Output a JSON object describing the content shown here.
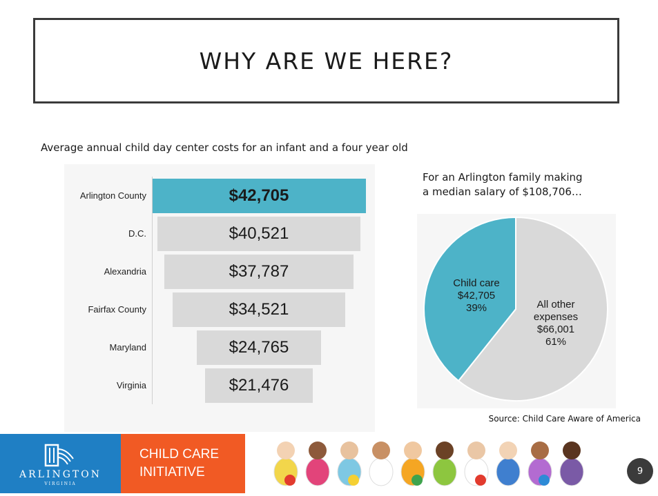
{
  "slide": {
    "title": "WHY ARE WE HERE?",
    "page_number": "9"
  },
  "funnel": {
    "subtitle": "Average annual child day center costs for an infant and a four year old",
    "highlight_color": "#4db3c8",
    "bar_color": "#d9d9d9",
    "rows": [
      {
        "label": "Arlington County",
        "value_label": "$42,705",
        "value": 42705,
        "highlight": true
      },
      {
        "label": "D.C.",
        "value_label": "$40,521",
        "value": 40521,
        "highlight": false
      },
      {
        "label": "Alexandria",
        "value_label": "$37,787",
        "value": 37787,
        "highlight": false
      },
      {
        "label": "Fairfax County",
        "value_label": "$34,521",
        "value": 34521,
        "highlight": false
      },
      {
        "label": "Maryland",
        "value_label": "$24,765",
        "value": 24765,
        "highlight": false
      },
      {
        "label": "Virginia",
        "value_label": "$21,476",
        "value": 21476,
        "highlight": false
      }
    ]
  },
  "pie": {
    "caption_line1": "For an Arlington family making",
    "caption_line2": "a median salary of $108,706…",
    "slices": [
      {
        "line1": "Child care",
        "line2": "$42,705",
        "line3": "39%",
        "value": 42705,
        "color": "#4db3c8"
      },
      {
        "line1": "All other",
        "line2": "expenses",
        "line3": "$66,001",
        "line4": "61%",
        "value": 66001,
        "color": "#d9d9d9"
      }
    ]
  },
  "source": "Source: Child Care Aware of America",
  "footer": {
    "logo_text": "ARLINGTON",
    "logo_sub": "VIRGINIA",
    "initiative_line1": "CHILD CARE",
    "initiative_line2": "INITIATIVE",
    "photo_icon": "children-photo-icon",
    "logo_color": "#1f7fc4",
    "initiative_color": "#f15a24"
  },
  "chart_data": [
    {
      "type": "bar",
      "title": "Average annual child day center costs for an infant and a four year old",
      "categories": [
        "Arlington County",
        "D.C.",
        "Alexandria",
        "Fairfax County",
        "Maryland",
        "Virginia"
      ],
      "values": [
        42705,
        40521,
        37787,
        34521,
        24765,
        21476
      ],
      "xlabel": "",
      "ylabel": "",
      "grid": false
    },
    {
      "type": "pie",
      "title": "",
      "categories": [
        "Child care",
        "All other expenses"
      ],
      "values": [
        42705,
        66001
      ],
      "percentages": [
        39,
        61
      ]
    }
  ]
}
